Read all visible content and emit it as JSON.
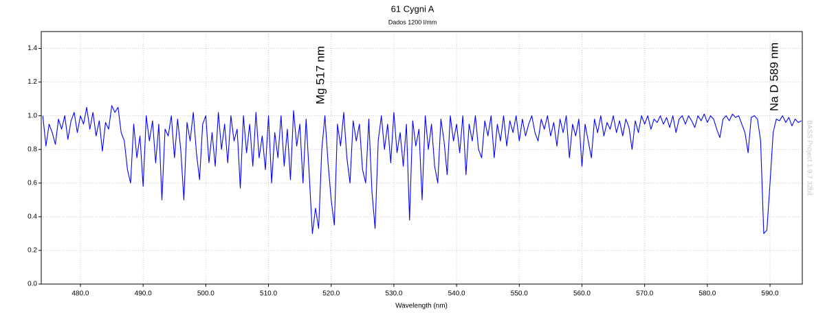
{
  "chart_data": {
    "type": "line",
    "title": "61 Cygni A",
    "subtitle": "Dados 1200 l/mm",
    "x_label": "Wavelength (nm)",
    "annotations": [
      "Mg 517 nm",
      "Na D 589 nm"
    ],
    "watermark": "BASS Project 1.9.7 32bit",
    "grid": true,
    "xlim": [
      473.75,
      595.15
    ],
    "ylim": [
      0,
      1.5
    ],
    "xticks": [
      {
        "value": 480,
        "label": "480.0"
      },
      {
        "value": 490,
        "label": "490.0"
      },
      {
        "value": 500,
        "label": "500.0"
      },
      {
        "value": 510,
        "label": "510.0"
      },
      {
        "value": 520,
        "label": "520.0"
      },
      {
        "value": 530,
        "label": "530.0"
      },
      {
        "value": 540,
        "label": "540.0"
      },
      {
        "value": 550,
        "label": "550.0"
      },
      {
        "value": 560,
        "label": "560.0"
      },
      {
        "value": 570,
        "label": "570.0"
      },
      {
        "value": 580,
        "label": "580.0"
      },
      {
        "value": 590,
        "label": "590.0"
      }
    ],
    "yticks": [
      {
        "value": 0,
        "label": "0.0"
      },
      0.2,
      0.4,
      0.6,
      0.8,
      {
        "value": 1,
        "label": "1.0"
      },
      1.2,
      1.4
    ],
    "series": [
      {
        "color": "#0000ff",
        "x": [
          474,
          474.5,
          475,
          475.5,
          476,
          476.5,
          477,
          477.5,
          478,
          478.5,
          479,
          479.5,
          480,
          480.5,
          481,
          481.5,
          482,
          482.5,
          483,
          483.5,
          484,
          484.5,
          485,
          485.5,
          486,
          486.5,
          487,
          487.5,
          488,
          488.5,
          489,
          489.5,
          490,
          490.5,
          491,
          491.5,
          492,
          492.5,
          493,
          493.5,
          494,
          494.5,
          495,
          495.5,
          496,
          496.5,
          497,
          497.5,
          498,
          498.5,
          499,
          499.5,
          500,
          500.5,
          501,
          501.5,
          502,
          502.5,
          503,
          503.5,
          504,
          504.5,
          505,
          505.5,
          506,
          506.5,
          507,
          507.5,
          508,
          508.5,
          509,
          509.5,
          510,
          510.5,
          511,
          511.5,
          512,
          512.5,
          513,
          513.5,
          514,
          514.5,
          515,
          515.5,
          516,
          516.5,
          517,
          517.5,
          518,
          518.5,
          519,
          519.5,
          520,
          520.5,
          521,
          521.5,
          522,
          522.5,
          523,
          523.5,
          524,
          524.5,
          525,
          525.5,
          526,
          526.5,
          527,
          527.5,
          528,
          528.5,
          529,
          529.5,
          530,
          530.5,
          531,
          531.5,
          532,
          532.5,
          533,
          533.5,
          534,
          534.5,
          535,
          535.5,
          536,
          536.5,
          537,
          537.5,
          538,
          538.5,
          539,
          539.5,
          540,
          540.5,
          541,
          541.5,
          542,
          542.5,
          543,
          543.5,
          544,
          544.5,
          545,
          545.5,
          546,
          546.5,
          547,
          547.5,
          548,
          548.5,
          549,
          549.5,
          550,
          550.5,
          551,
          551.5,
          552,
          552.5,
          553,
          553.5,
          554,
          554.5,
          555,
          555.5,
          556,
          556.5,
          557,
          557.5,
          558,
          558.5,
          559,
          559.5,
          560,
          560.5,
          561,
          561.5,
          562,
          562.5,
          563,
          563.5,
          564,
          564.5,
          565,
          565.5,
          566,
          566.5,
          567,
          567.5,
          568,
          568.5,
          569,
          569.5,
          570,
          570.5,
          571,
          571.5,
          572,
          572.5,
          573,
          573.5,
          574,
          574.5,
          575,
          575.5,
          576,
          576.5,
          577,
          577.5,
          578,
          578.5,
          579,
          579.5,
          580,
          580.5,
          581,
          581.5,
          582,
          582.5,
          583,
          583.5,
          584,
          584.5,
          585,
          585.5,
          586,
          586.5,
          587,
          587.5,
          588,
          588.5,
          589,
          589.5,
          590,
          590.5,
          591,
          591.5,
          592,
          592.5,
          593,
          593.5,
          594,
          594.5,
          595
        ],
        "values": [
          1.0,
          0.82,
          0.95,
          0.9,
          0.83,
          0.98,
          0.92,
          1.0,
          0.86,
          0.97,
          1.02,
          0.9,
          1.0,
          0.95,
          1.05,
          0.92,
          1.02,
          0.88,
          0.97,
          0.79,
          0.96,
          0.92,
          1.06,
          1.02,
          1.05,
          0.9,
          0.85,
          0.68,
          0.6,
          0.95,
          0.75,
          0.88,
          0.58,
          1.0,
          0.85,
          0.97,
          0.72,
          0.95,
          0.5,
          0.92,
          0.88,
          1.0,
          0.75,
          0.98,
          0.8,
          0.5,
          0.96,
          0.85,
          1.02,
          0.78,
          0.62,
          0.95,
          1.0,
          0.72,
          0.9,
          0.7,
          1.02,
          0.8,
          0.95,
          0.72,
          1.0,
          0.85,
          0.92,
          0.57,
          1.0,
          0.78,
          0.95,
          0.7,
          1.02,
          0.75,
          0.88,
          0.68,
          1.0,
          0.6,
          0.9,
          0.75,
          1.0,
          0.7,
          0.92,
          0.62,
          1.03,
          0.82,
          0.95,
          0.6,
          0.98,
          0.65,
          0.3,
          0.45,
          0.33,
          0.8,
          1.0,
          0.72,
          0.5,
          0.35,
          0.95,
          0.82,
          1.02,
          0.75,
          0.6,
          0.97,
          0.85,
          0.95,
          0.68,
          0.6,
          0.98,
          0.55,
          0.33,
          0.85,
          1.0,
          0.8,
          0.95,
          0.72,
          1.02,
          0.78,
          0.9,
          0.7,
          0.95,
          0.38,
          0.97,
          0.82,
          0.92,
          0.5,
          1.0,
          0.8,
          0.95,
          0.7,
          0.6,
          0.98,
          0.85,
          0.65,
          1.0,
          0.85,
          0.95,
          0.78,
          1.0,
          0.65,
          0.95,
          0.85,
          1.0,
          0.8,
          0.75,
          0.97,
          0.88,
          1.0,
          0.75,
          0.95,
          0.85,
          1.0,
          0.82,
          0.97,
          0.9,
          1.0,
          0.85,
          0.98,
          0.88,
          0.95,
          1.0,
          0.9,
          0.85,
          0.98,
          0.92,
          1.0,
          0.88,
          0.96,
          0.82,
          0.98,
          0.9,
          1.0,
          0.75,
          0.95,
          0.88,
          0.98,
          0.7,
          0.95,
          0.85,
          0.75,
          0.98,
          0.9,
          1.0,
          0.88,
          0.96,
          0.92,
          1.0,
          0.9,
          0.97,
          0.88,
          0.98,
          0.93,
          0.8,
          0.97,
          0.9,
          1.0,
          0.95,
          1.0,
          0.92,
          0.98,
          0.96,
          1.0,
          0.95,
          0.99,
          0.93,
          1.0,
          0.9,
          0.98,
          1.0,
          0.95,
          1.0,
          0.97,
          0.93,
          1.0,
          0.97,
          1.01,
          0.96,
          1.0,
          0.98,
          0.92,
          0.87,
          0.98,
          1.0,
          0.97,
          1.01,
          0.99,
          1.0,
          0.95,
          0.9,
          0.78,
          0.99,
          1.0,
          0.98,
          0.85,
          0.3,
          0.32,
          0.6,
          0.9,
          0.98,
          0.97,
          1.0,
          0.96,
          0.99,
          0.94,
          0.98,
          0.96,
          0.97
        ]
      }
    ]
  }
}
